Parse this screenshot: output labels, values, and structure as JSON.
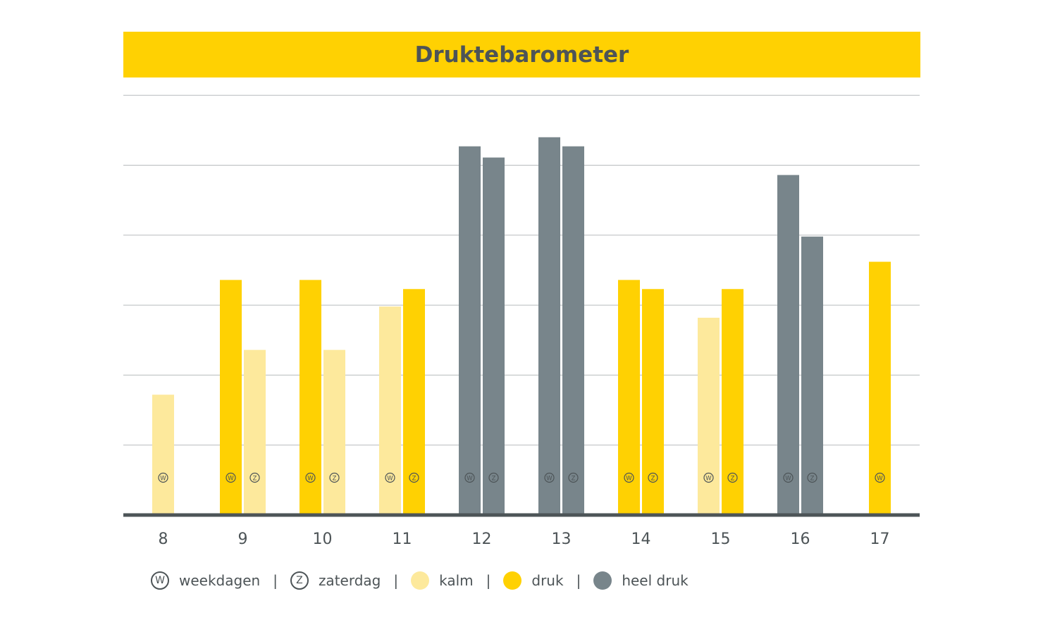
{
  "chart_data": {
    "type": "bar",
    "title": "Druktebarometer",
    "categories": [
      "8",
      "9",
      "10",
      "11",
      "12",
      "13",
      "14",
      "15",
      "16",
      "17"
    ],
    "series": [
      {
        "name": "weekdagen",
        "marker": "W",
        "values": [
          1.72,
          3.36,
          3.36,
          2.98,
          5.27,
          5.4,
          3.36,
          2.82,
          4.86,
          3.62
        ],
        "levels": [
          "kalm",
          "druk",
          "druk",
          "kalm",
          "heel druk",
          "heel druk",
          "druk",
          "kalm",
          "heel druk",
          "druk"
        ]
      },
      {
        "name": "zaterdag",
        "marker": "Z",
        "values": [
          null,
          2.36,
          2.36,
          3.23,
          5.11,
          5.27,
          3.23,
          3.23,
          3.98,
          null
        ],
        "levels": [
          null,
          "kalm",
          "kalm",
          "druk",
          "heel druk",
          "heel druk",
          "druk",
          "druk",
          "heel druk",
          null
        ]
      }
    ],
    "ylim": [
      0,
      6
    ],
    "grid": true,
    "legend_position": "bottom",
    "colors": {
      "kalm": "#fde99c",
      "druk": "#ffd102",
      "heel druk": "#78858b",
      "title_band": "#ffd102",
      "text": "#4d5457",
      "axis": "#4d5457",
      "grid": "#b7bbbd"
    }
  },
  "legend": {
    "weekdays_marker": "W",
    "weekdays_label": "weekdagen",
    "saturday_marker": "Z",
    "saturday_label": "zaterdag",
    "calm_label": "kalm",
    "busy_label": "druk",
    "very_busy_label": "heel druk",
    "separator": "|"
  }
}
